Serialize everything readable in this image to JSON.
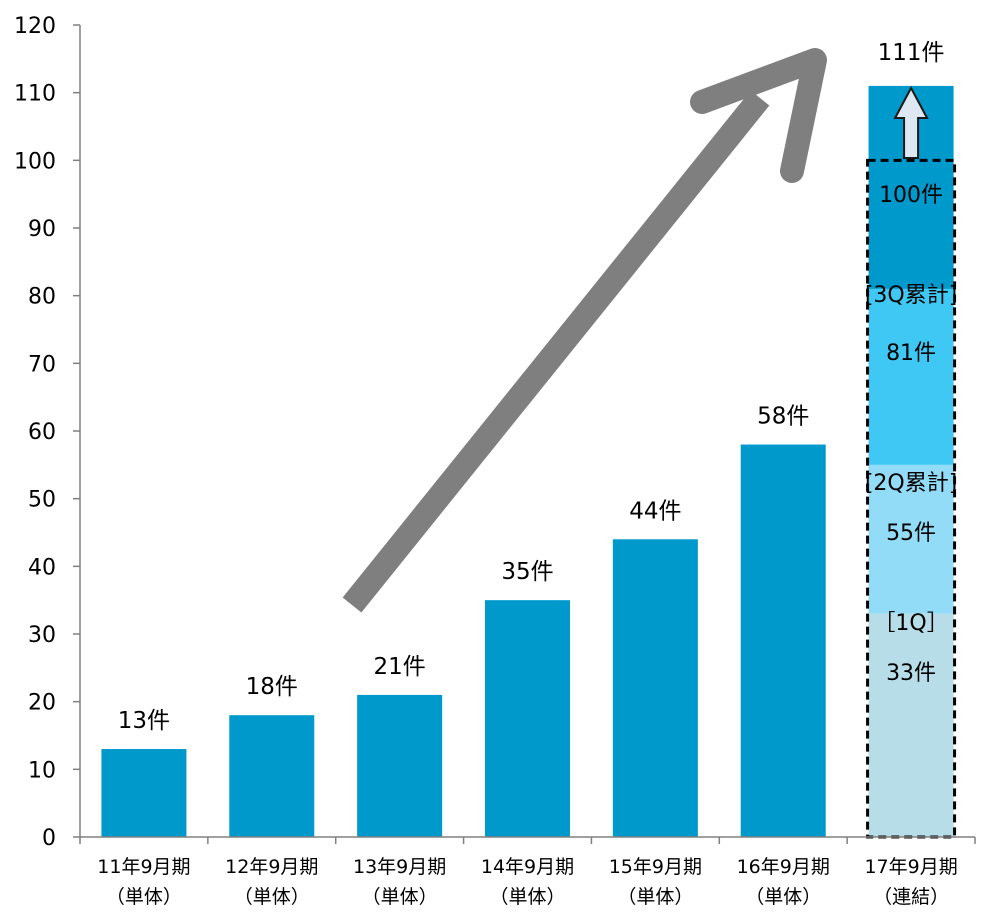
{
  "chart_data": {
    "type": "bar",
    "ylim": [
      0,
      120
    ],
    "yticks": [
      0,
      10,
      20,
      30,
      40,
      50,
      60,
      70,
      80,
      90,
      100,
      110,
      120
    ],
    "categories": [
      {
        "line1": "11年9月期",
        "line2": "（単体）"
      },
      {
        "line1": "12年9月期",
        "line2": "（単体）"
      },
      {
        "line1": "13年9月期",
        "line2": "（単体）"
      },
      {
        "line1": "14年9月期",
        "line2": "（単体）"
      },
      {
        "line1": "15年9月期",
        "line2": "（単体）"
      },
      {
        "line1": "16年9月期",
        "line2": "（単体）"
      },
      {
        "line1": "17年9月期",
        "line2": "（連結）"
      }
    ],
    "values": [
      13,
      18,
      21,
      35,
      44,
      58,
      111
    ],
    "value_labels": [
      "13件",
      "18件",
      "21件",
      "35件",
      "44件",
      "58件",
      "111件"
    ],
    "last_bar_segments": [
      {
        "from": 0,
        "to": 33,
        "color": "#b7dde8",
        "label_top": "［1Q］",
        "label_bottom": "33件"
      },
      {
        "from": 33,
        "to": 55,
        "color": "#93dcf7",
        "label_top": "[2Q累計]",
        "label_bottom": "55件"
      },
      {
        "from": 55,
        "to": 81,
        "color": "#3fc8f4",
        "label_top": "[3Q累計]",
        "label_bottom": "81件"
      },
      {
        "from": 81,
        "to": 111,
        "color": "#0099cc",
        "label_top": "",
        "label_bottom": "100件"
      }
    ],
    "plan_box_value": 100,
    "colors": {
      "bar": "#0099cc",
      "axis": "#808080",
      "trend_arrow": "#7f7f7f",
      "up_arrow_fill": "#dde8f3",
      "up_arrow_stroke": "#1a1a1a"
    },
    "grid": false
  }
}
